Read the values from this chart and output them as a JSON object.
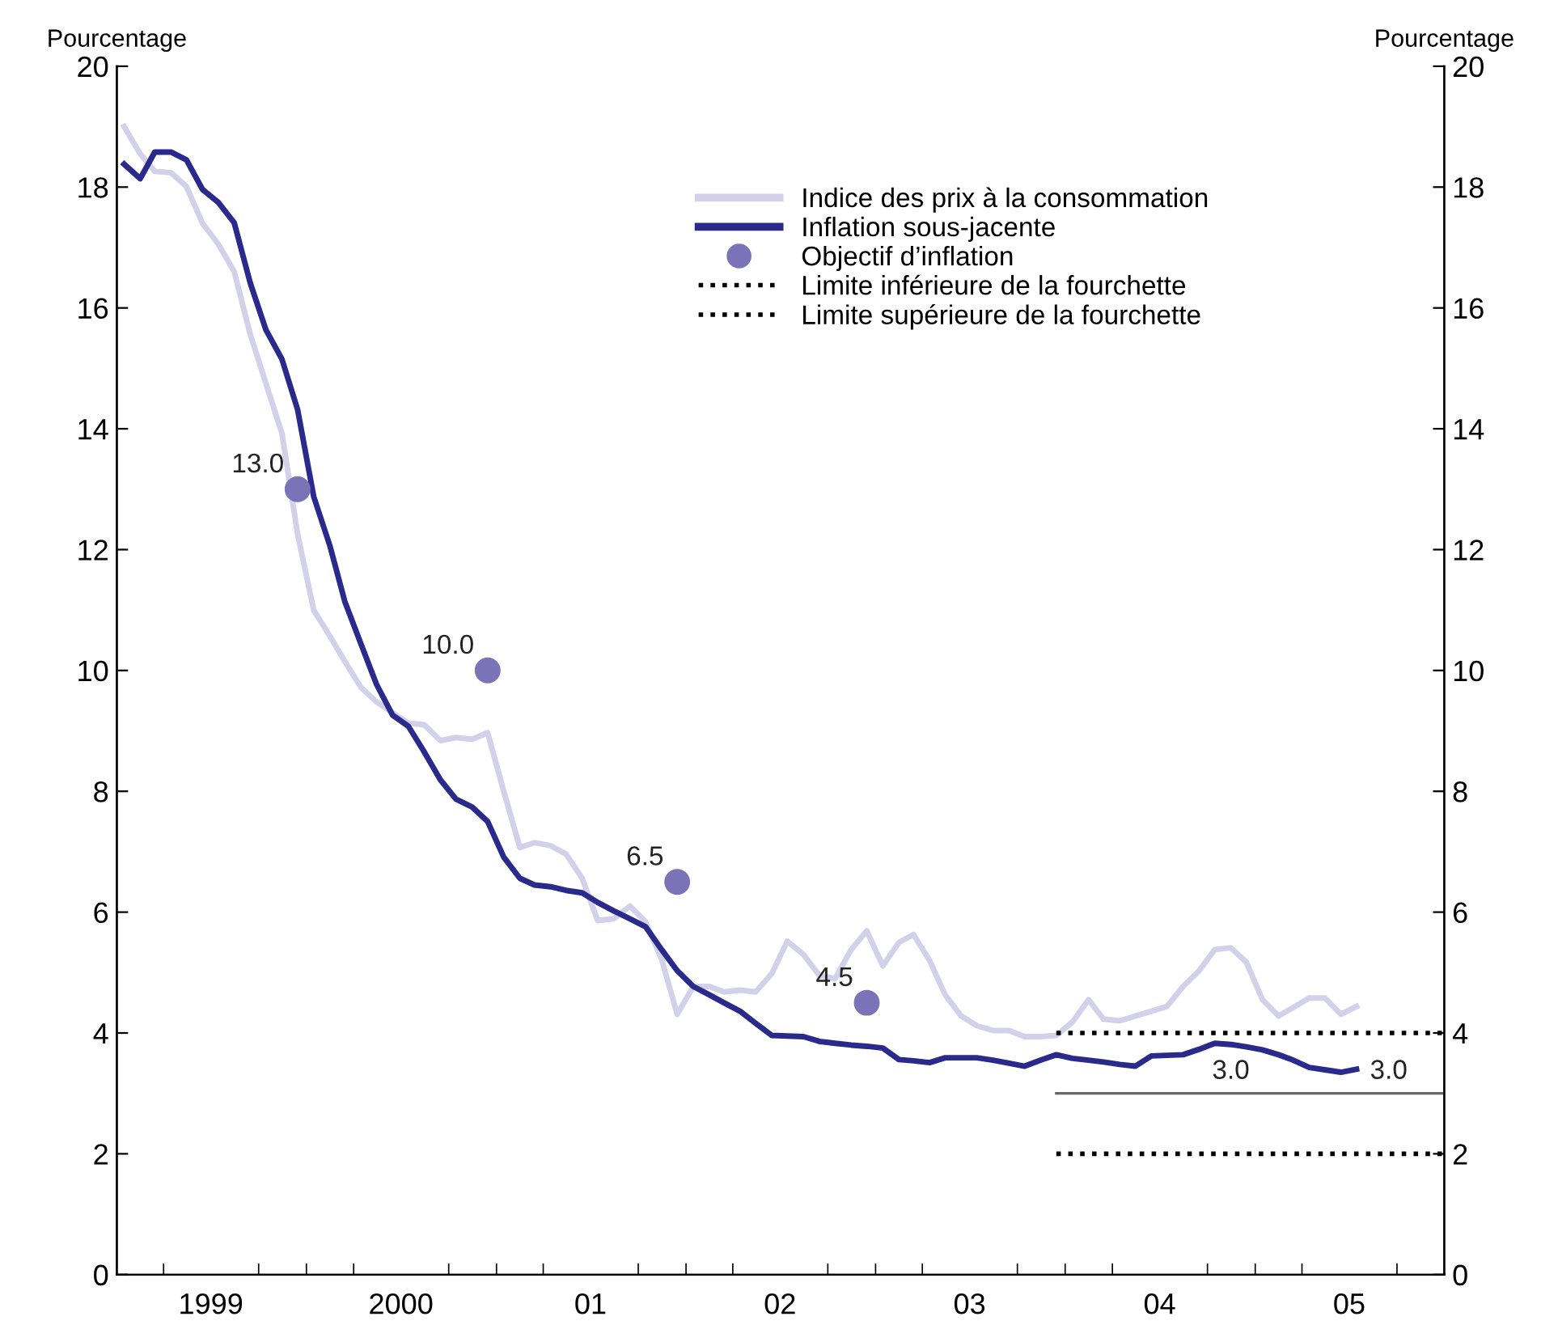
{
  "chart_data": {
    "type": "line",
    "ylabel": "Pourcentage",
    "y2label": "Pourcentage",
    "x": [
      "1999-01-15",
      "1999-02-15",
      "1999-03-15",
      "1999-04-15",
      "1999-05-15",
      "1999-06-15",
      "1999-07-15",
      "1999-08-15",
      "1999-09-15",
      "1999-10-15",
      "1999-11-15",
      "1999-12-15",
      "2000-01-15",
      "2000-02-15",
      "2000-03-15",
      "2000-04-15",
      "2000-05-15",
      "2000-06-15",
      "2000-07-15",
      "2000-08-15",
      "2000-09-15",
      "2000-10-15",
      "2000-11-15",
      "2000-12-15",
      "2001-01-15",
      "2001-02-15",
      "2001-03-15",
      "2001-04-15",
      "2001-05-15",
      "2001-06-15",
      "2001-07-15",
      "2001-08-15",
      "2001-09-15",
      "2001-10-15",
      "2001-11-15",
      "2001-12-15",
      "2002-01-15",
      "2002-02-15",
      "2002-03-15",
      "2002-04-15",
      "2002-05-15",
      "2002-06-15",
      "2002-07-15",
      "2002-08-15",
      "2002-09-15",
      "2002-10-15",
      "2002-11-15",
      "2002-12-15",
      "2003-01-15",
      "2003-02-15",
      "2003-03-15",
      "2003-04-15",
      "2003-05-15",
      "2003-06-15",
      "2003-07-15",
      "2003-08-15",
      "2003-09-15",
      "2003-10-15",
      "2003-11-15",
      "2003-12-15",
      "2004-01-15",
      "2004-02-15",
      "2004-03-15",
      "2004-04-15",
      "2004-05-15",
      "2004-06-15",
      "2004-07-15",
      "2004-08-15",
      "2004-09-15",
      "2004-10-15",
      "2004-11-15",
      "2004-12-15",
      "2005-01-15",
      "2005-02-15",
      "2005-03-15",
      "2005-04-15",
      "2005-05-15",
      "2005-06-15",
      "2005-07-15"
    ],
    "series": [
      {
        "name": "Indice des prix à la consommation",
        "color": "#d3d1ea",
        "values": [
          19.0,
          18.55,
          18.26,
          18.24,
          18.01,
          17.4,
          17.06,
          16.6,
          15.56,
          14.75,
          13.92,
          12.26,
          11.0,
          10.57,
          10.15,
          9.72,
          9.48,
          9.3,
          9.13,
          9.1,
          8.84,
          8.89,
          8.86,
          8.97,
          8.0,
          7.07,
          7.15,
          7.1,
          6.96,
          6.56,
          5.86,
          5.89,
          6.1,
          5.84,
          5.22,
          4.31,
          4.77,
          4.77,
          4.68,
          4.71,
          4.68,
          4.98,
          5.52,
          5.3,
          4.95,
          4.9,
          5.38,
          5.69,
          5.11,
          5.5,
          5.63,
          5.2,
          4.63,
          4.28,
          4.12,
          4.04,
          4.04,
          3.94,
          3.94,
          3.96,
          4.18,
          4.55,
          4.23,
          4.2,
          4.28,
          4.36,
          4.44,
          4.77,
          5.03,
          5.38,
          5.41,
          5.17,
          4.55,
          4.28,
          4.42,
          4.58,
          4.58,
          4.31,
          4.44
        ]
      },
      {
        "name": "Inflation sous-jacente",
        "color": "#2a2a8c",
        "values": [
          18.38,
          18.14,
          18.58,
          18.58,
          18.45,
          17.96,
          17.75,
          17.41,
          16.41,
          15.64,
          15.15,
          14.32,
          12.88,
          12.07,
          11.14,
          10.44,
          9.77,
          9.26,
          9.08,
          8.65,
          8.19,
          7.87,
          7.74,
          7.5,
          6.91,
          6.56,
          6.45,
          6.42,
          6.36,
          6.32,
          6.16,
          6.02,
          5.89,
          5.76,
          5.38,
          5.03,
          4.77,
          4.63,
          4.5,
          4.36,
          4.16,
          3.96,
          3.95,
          3.94,
          3.86,
          3.83,
          3.8,
          3.78,
          3.75,
          3.56,
          3.54,
          3.51,
          3.59,
          3.59,
          3.59,
          3.55,
          3.5,
          3.45,
          3.55,
          3.64,
          3.58,
          3.55,
          3.52,
          3.48,
          3.45,
          3.62,
          3.63,
          3.64,
          3.73,
          3.83,
          3.81,
          3.77,
          3.72,
          3.64,
          3.55,
          3.43,
          3.39,
          3.35,
          3.4
        ]
      },
      {
        "name": "Objectif d’inflation",
        "type": "scatter",
        "marker": "circle",
        "color": "#7b73b8",
        "x": [
          "1999-12-15",
          "2000-12-15",
          "2001-12-15",
          "2002-12-15"
        ],
        "values": [
          13.0,
          10.0,
          6.5,
          4.5
        ],
        "value_labels": [
          "13.0",
          "10.0",
          "6.5",
          "4.5"
        ]
      },
      {
        "name": "Limite inférieure de la fourchette",
        "color": "#000000",
        "line_style": "dotted",
        "x": [
          "2003-12-15",
          "2005-12-31"
        ],
        "values": [
          2,
          2
        ]
      },
      {
        "name": "Limite supérieure de la fourchette",
        "color": "#000000",
        "line_style": "dotted",
        "x": [
          "2003-12-15",
          "2005-12-31"
        ],
        "values": [
          4,
          4
        ]
      },
      {
        "color": "#666666",
        "x": [
          "2003-12-15",
          "2005-12-31"
        ],
        "values": [
          3.0,
          3.0
        ]
      }
    ],
    "annotations": [
      {
        "text": "3.0",
        "x": "2004-11-15",
        "y": 3.0
      },
      {
        "text": "3.0",
        "x": "2005-09-15",
        "y": 3.0
      }
    ],
    "xlim": [
      "1999-01-01",
      "2005-12-31"
    ],
    "xticks": [
      {
        "value": "1999-04-01",
        "label": null
      },
      {
        "value": "1999-07-01",
        "label": "1999"
      },
      {
        "value": "1999-10-01",
        "label": null
      },
      {
        "value": "2000-01-01",
        "label": null
      },
      {
        "value": "2000-04-01",
        "label": null
      },
      {
        "value": "2000-07-01",
        "label": "2000"
      },
      {
        "value": "2000-10-01",
        "label": null
      },
      {
        "value": "2001-01-01",
        "label": null
      },
      {
        "value": "2001-04-01",
        "label": null
      },
      {
        "value": "2001-07-01",
        "label": "01"
      },
      {
        "value": "2001-10-01",
        "label": null
      },
      {
        "value": "2002-01-01",
        "label": null
      },
      {
        "value": "2002-04-01",
        "label": null
      },
      {
        "value": "2002-07-01",
        "label": "02"
      },
      {
        "value": "2002-10-01",
        "label": null
      },
      {
        "value": "2003-01-01",
        "label": null
      },
      {
        "value": "2003-04-01",
        "label": null
      },
      {
        "value": "2003-07-01",
        "label": "03"
      },
      {
        "value": "2003-10-01",
        "label": null
      },
      {
        "value": "2004-01-01",
        "label": null
      },
      {
        "value": "2004-04-01",
        "label": null
      },
      {
        "value": "2004-07-01",
        "label": "04"
      },
      {
        "value": "2004-10-01",
        "label": null
      },
      {
        "value": "2005-01-01",
        "label": null
      },
      {
        "value": "2005-04-01",
        "label": null
      },
      {
        "value": "2005-07-01",
        "label": "05"
      },
      {
        "value": "2005-10-01",
        "label": null
      }
    ],
    "ylim": [
      0,
      20
    ],
    "yticks": [
      0,
      2,
      4,
      6,
      8,
      10,
      12,
      14,
      16,
      18,
      20
    ],
    "y2lim": [
      0,
      20
    ],
    "y2ticks": [
      0,
      2,
      4,
      6,
      8,
      10,
      12,
      14,
      16,
      18,
      20
    ],
    "legend": "top",
    "grid": false
  }
}
